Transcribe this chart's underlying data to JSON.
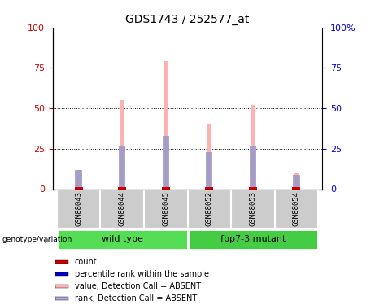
{
  "title": "GDS1743 / 252577_at",
  "samples": [
    "GSM88043",
    "GSM88044",
    "GSM88045",
    "GSM88052",
    "GSM88053",
    "GSM88054"
  ],
  "pink_bar_heights": [
    12,
    55,
    79,
    40,
    52,
    10
  ],
  "blue_bar_heights": [
    12,
    27,
    33,
    23,
    27,
    9
  ],
  "red_bar_heights": [
    1,
    1,
    1,
    1,
    1,
    1
  ],
  "groups": [
    {
      "label": "wild type",
      "start": 0,
      "end": 3,
      "color": "#55dd55"
    },
    {
      "label": "fbp7-3 mutant",
      "start": 3,
      "end": 6,
      "color": "#44cc44"
    }
  ],
  "ylim": [
    0,
    100
  ],
  "yticks": [
    0,
    25,
    50,
    75,
    100
  ],
  "left_tick_color": "#cc0000",
  "right_tick_color": "#0000cc",
  "pink_color": "#ffb0b0",
  "blue_color": "#9999cc",
  "red_color": "#cc0000",
  "legend_items": [
    {
      "color": "#cc0000",
      "label": "count"
    },
    {
      "color": "#0000cc",
      "label": "percentile rank within the sample"
    },
    {
      "color": "#ffb0b0",
      "label": "value, Detection Call = ABSENT"
    },
    {
      "color": "#aaaadd",
      "label": "rank, Detection Call = ABSENT"
    }
  ],
  "genotype_label": "genotype/variation",
  "bar_width": 0.12,
  "sample_box_color": "#cccccc",
  "background_color": "#ffffff"
}
